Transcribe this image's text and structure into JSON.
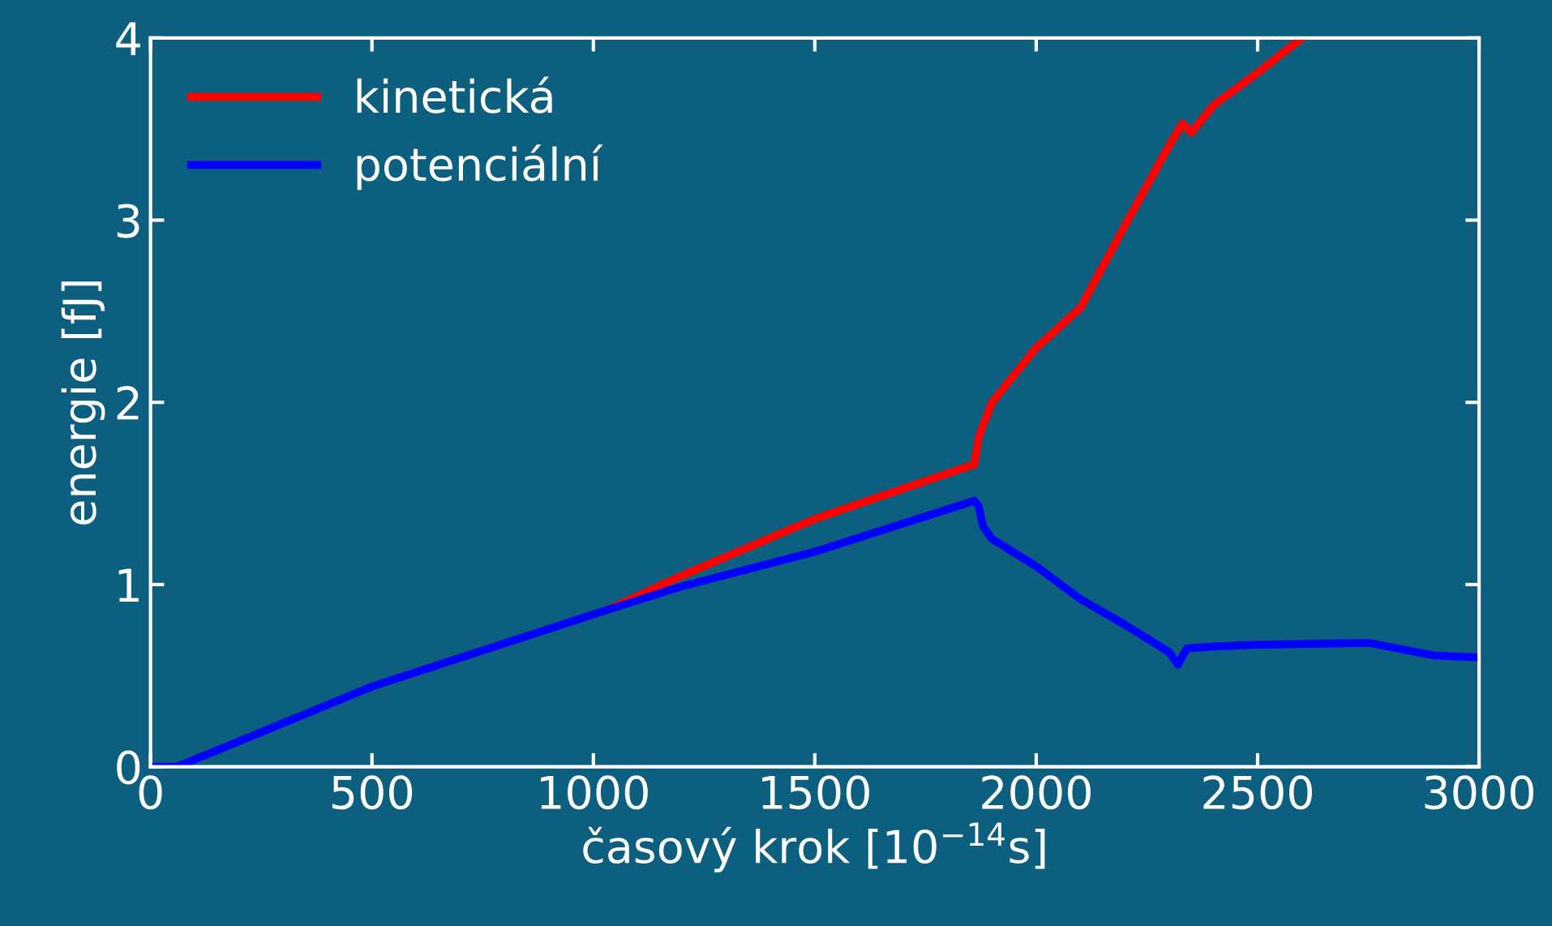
{
  "chart_data": {
    "type": "line",
    "xlabel": "časový krok [10$^{−14}$s]",
    "ylabel": "energie [fJ]",
    "xlim": [
      0,
      3000
    ],
    "ylim": [
      0,
      4
    ],
    "xticks": [
      0,
      500,
      1000,
      1500,
      2000,
      2500,
      3000
    ],
    "yticks": [
      0,
      1,
      2,
      3,
      4
    ],
    "grid": false,
    "legend": "top left",
    "line_style": "solid",
    "marker": "none",
    "series": [
      {
        "name": "kinetická",
        "color": "#ff0000",
        "x": [
          1030,
          1200,
          1500,
          1860,
          1870,
          1900,
          2000,
          2100,
          2200,
          2300,
          2330,
          2350,
          2400,
          2500,
          2600
        ],
        "values": [
          0.86,
          1.05,
          1.36,
          1.66,
          1.81,
          2.0,
          2.3,
          2.52,
          2.97,
          3.41,
          3.53,
          3.48,
          3.63,
          3.81,
          4.0
        ]
      },
      {
        "name": "potenciální",
        "color": "#0000ff",
        "x": [
          0,
          60,
          500,
          1030,
          1200,
          1500,
          1860,
          1870,
          1880,
          1900,
          2000,
          2100,
          2200,
          2300,
          2320,
          2340,
          2400,
          2500,
          2750,
          2900,
          3000
        ],
        "values": [
          0,
          0,
          0.44,
          0.86,
          0.99,
          1.18,
          1.46,
          1.43,
          1.32,
          1.25,
          1.1,
          0.92,
          0.78,
          0.63,
          0.56,
          0.65,
          0.66,
          0.67,
          0.68,
          0.61,
          0.6
        ]
      }
    ]
  }
}
